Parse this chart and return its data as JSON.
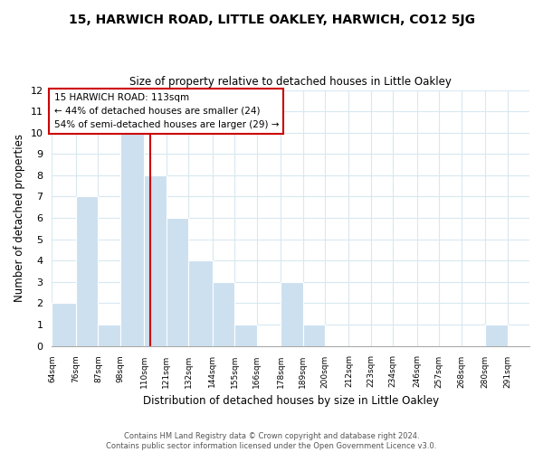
{
  "title": "15, HARWICH ROAD, LITTLE OAKLEY, HARWICH, CO12 5JG",
  "subtitle": "Size of property relative to detached houses in Little Oakley",
  "xlabel": "Distribution of detached houses by size in Little Oakley",
  "ylabel": "Number of detached properties",
  "footer_lines": [
    "Contains HM Land Registry data © Crown copyright and database right 2024.",
    "Contains public sector information licensed under the Open Government Licence v3.0."
  ],
  "bin_labels": [
    "64sqm",
    "76sqm",
    "87sqm",
    "98sqm",
    "110sqm",
    "121sqm",
    "132sqm",
    "144sqm",
    "155sqm",
    "166sqm",
    "178sqm",
    "189sqm",
    "200sqm",
    "212sqm",
    "223sqm",
    "234sqm",
    "246sqm",
    "257sqm",
    "268sqm",
    "280sqm",
    "291sqm"
  ],
  "bar_heights": [
    2,
    7,
    1,
    10,
    8,
    6,
    4,
    3,
    1,
    0,
    3,
    1,
    0,
    0,
    0,
    0,
    0,
    0,
    0,
    1,
    0
  ],
  "bar_color": "#cce0f0",
  "grid_color": "#d8e8f0",
  "property_line_label": "15 HARWICH ROAD: 113sqm",
  "annotation_line1": "← 44% of detached houses are smaller (24)",
  "annotation_line2": "54% of semi-detached houses are larger (29) →",
  "annotation_box_edge": "#cc0000",
  "property_line_color": "#cc0000",
  "ylim": [
    0,
    12
  ],
  "yticks": [
    0,
    1,
    2,
    3,
    4,
    5,
    6,
    7,
    8,
    9,
    10,
    11,
    12
  ],
  "bin_edges": [
    64,
    76,
    87,
    98,
    110,
    121,
    132,
    144,
    155,
    166,
    178,
    189,
    200,
    212,
    223,
    234,
    246,
    257,
    268,
    280,
    291,
    302
  ]
}
